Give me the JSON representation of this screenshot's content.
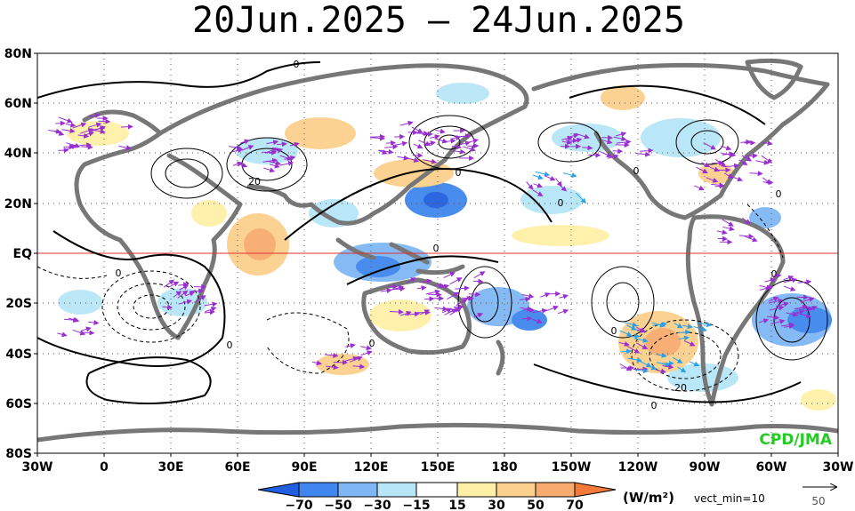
{
  "title": "20Jun.2025 — 24Jun.2025",
  "lat_labels": [
    "80N",
    "60N",
    "40N",
    "20N",
    "EQ",
    "20S",
    "40S",
    "60S",
    "80S"
  ],
  "lon_labels": [
    "30W",
    "0",
    "30E",
    "60E",
    "90E",
    "120E",
    "150E",
    "180",
    "150W",
    "120W",
    "90W",
    "60W",
    "30W"
  ],
  "colorbar": {
    "labels": [
      "−70",
      "−50",
      "−30",
      "−15",
      "15",
      "30",
      "50",
      "70"
    ],
    "colors": [
      "#1f5fe0",
      "#3f86ee",
      "#7fb7f5",
      "#b7e6f7",
      "#ffffff",
      "#fff0a8",
      "#fbd08c",
      "#f8ab6e",
      "#f57a3a"
    ],
    "units": "(W/m²)",
    "vect_note": "vect_min=10"
  },
  "reference_vector": "50",
  "credit": "CPD/JMA",
  "contour_labels": [
    "0",
    "0",
    "20",
    "0",
    "0",
    "0",
    "0",
    "0",
    "0",
    "20",
    "0",
    "0",
    "0",
    "0"
  ],
  "colors": {
    "vector": "#9a2fd1",
    "vector_alt": "#2aa0e8",
    "land": "#7a7a7a",
    "equator": "#e03030",
    "credit": "#22cc22"
  }
}
